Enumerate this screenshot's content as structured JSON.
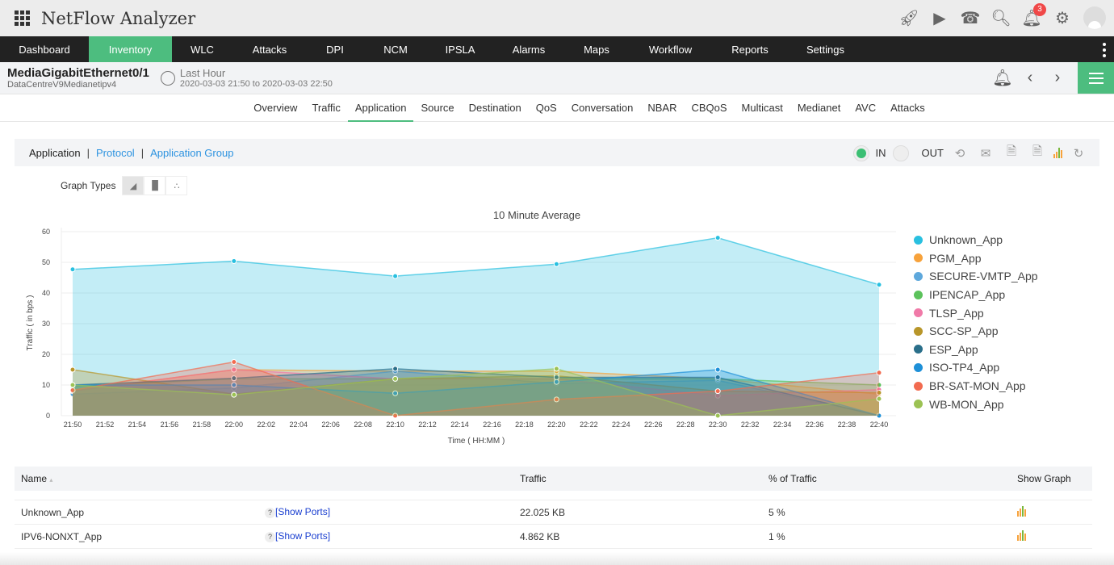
{
  "app": {
    "title": "NetFlow Analyzer",
    "notification_count": "3"
  },
  "top_icons": [
    "rocket-icon",
    "presentation-icon",
    "headset-icon",
    "search-icon",
    "bell-icon",
    "gear-icon",
    "avatar"
  ],
  "nav": {
    "items": [
      "Dashboard",
      "Inventory",
      "WLC",
      "Attacks",
      "DPI",
      "NCM",
      "IPSLA",
      "Alarms",
      "Maps",
      "Workflow",
      "Reports",
      "Settings"
    ],
    "active": "Inventory"
  },
  "device": {
    "name": "MediaGigabitEthernet0/1",
    "router": "DataCentreV9Medianetipv4",
    "time_label": "Last Hour",
    "time_range": "2020-03-03 21:50 to 2020-03-03 22:50"
  },
  "tabs": {
    "items": [
      "Overview",
      "Traffic",
      "Application",
      "Source",
      "Destination",
      "QoS",
      "Conversation",
      "NBAR",
      "CBQoS",
      "Multicast",
      "Medianet",
      "AVC",
      "Attacks"
    ],
    "active": "Application"
  },
  "toolbar": {
    "application": "Application",
    "protocol": "Protocol",
    "app_group": "Application Group",
    "in_label": "IN",
    "out_label": "OUT",
    "direction": "IN"
  },
  "graph_types": {
    "label": "Graph Types",
    "selected": "area"
  },
  "chart_data": {
    "type": "area",
    "title": "10 Minute Average",
    "xlabel": "Time ( HH:MM )",
    "ylabel": "Traffic ( in bps )",
    "ylim": [
      0,
      60
    ],
    "yticks": [
      "0",
      "10",
      "20",
      "30",
      "40",
      "50",
      "60"
    ],
    "xticks": [
      "21:50",
      "21:52",
      "21:54",
      "21:56",
      "21:58",
      "22:00",
      "22:02",
      "22:04",
      "22:06",
      "22:08",
      "22:10",
      "22:12",
      "22:14",
      "22:16",
      "22:18",
      "22:20",
      "22:22",
      "22:24",
      "22:26",
      "22:28",
      "22:30",
      "22:32",
      "22:34",
      "22:36",
      "22:38",
      "22:40"
    ],
    "x": [
      "21:50",
      "22:00",
      "22:10",
      "22:20",
      "22:30",
      "22:40"
    ],
    "grid": true,
    "legend": "right",
    "series": [
      {
        "name": "Unknown_App",
        "color": "#29c0e0",
        "values": [
          47.7,
          50.4,
          45.5,
          49.4,
          58,
          42.7
        ]
      },
      {
        "name": "PGM_App",
        "color": "#f7a23b",
        "values": [
          8,
          15,
          14.5,
          14.5,
          12,
          7
        ]
      },
      {
        "name": "SECURE-VMTP_App",
        "color": "#5ea8dc",
        "values": [
          7,
          9,
          14.5,
          10.5,
          11.5,
          0
        ]
      },
      {
        "name": "IPENCAP_App",
        "color": "#5cc25c",
        "values": [
          9.5,
          12,
          12,
          12,
          12,
          10
        ]
      },
      {
        "name": "TLSP_App",
        "color": "#f07aa8",
        "values": [
          8,
          15,
          12,
          12,
          6.5,
          8.5
        ]
      },
      {
        "name": "SCC-SP_App",
        "color": "#b8962a",
        "values": [
          15,
          7,
          12,
          13,
          8,
          7.5
        ]
      },
      {
        "name": "ESP_App",
        "color": "#2a6f8a",
        "values": [
          10,
          12.2,
          15.3,
          12.5,
          12.5,
          0
        ]
      },
      {
        "name": "ISO-TP4_App",
        "color": "#1e90d8",
        "values": [
          10,
          10,
          7.3,
          11,
          15,
          0
        ]
      },
      {
        "name": "BR-SAT-MON_App",
        "color": "#f26b50",
        "values": [
          8.3,
          17.5,
          0,
          5.3,
          8,
          14
        ]
      },
      {
        "name": "WB-MON_App",
        "color": "#9cc254",
        "values": [
          10,
          6.8,
          12,
          15.3,
          0,
          5.5
        ]
      }
    ]
  },
  "table": {
    "headers": [
      "Name",
      "",
      "Traffic",
      "% of Traffic",
      "Show Graph"
    ],
    "rows": [
      {
        "name": "Unknown_App",
        "help": "?",
        "link": "[Show Ports]",
        "traffic": "22.025 KB",
        "percent": "5 %"
      },
      {
        "name": "IPV6-NONXT_App",
        "help": "?",
        "link": "[Show Ports]",
        "traffic": "4.862 KB",
        "percent": "1 %"
      }
    ]
  }
}
